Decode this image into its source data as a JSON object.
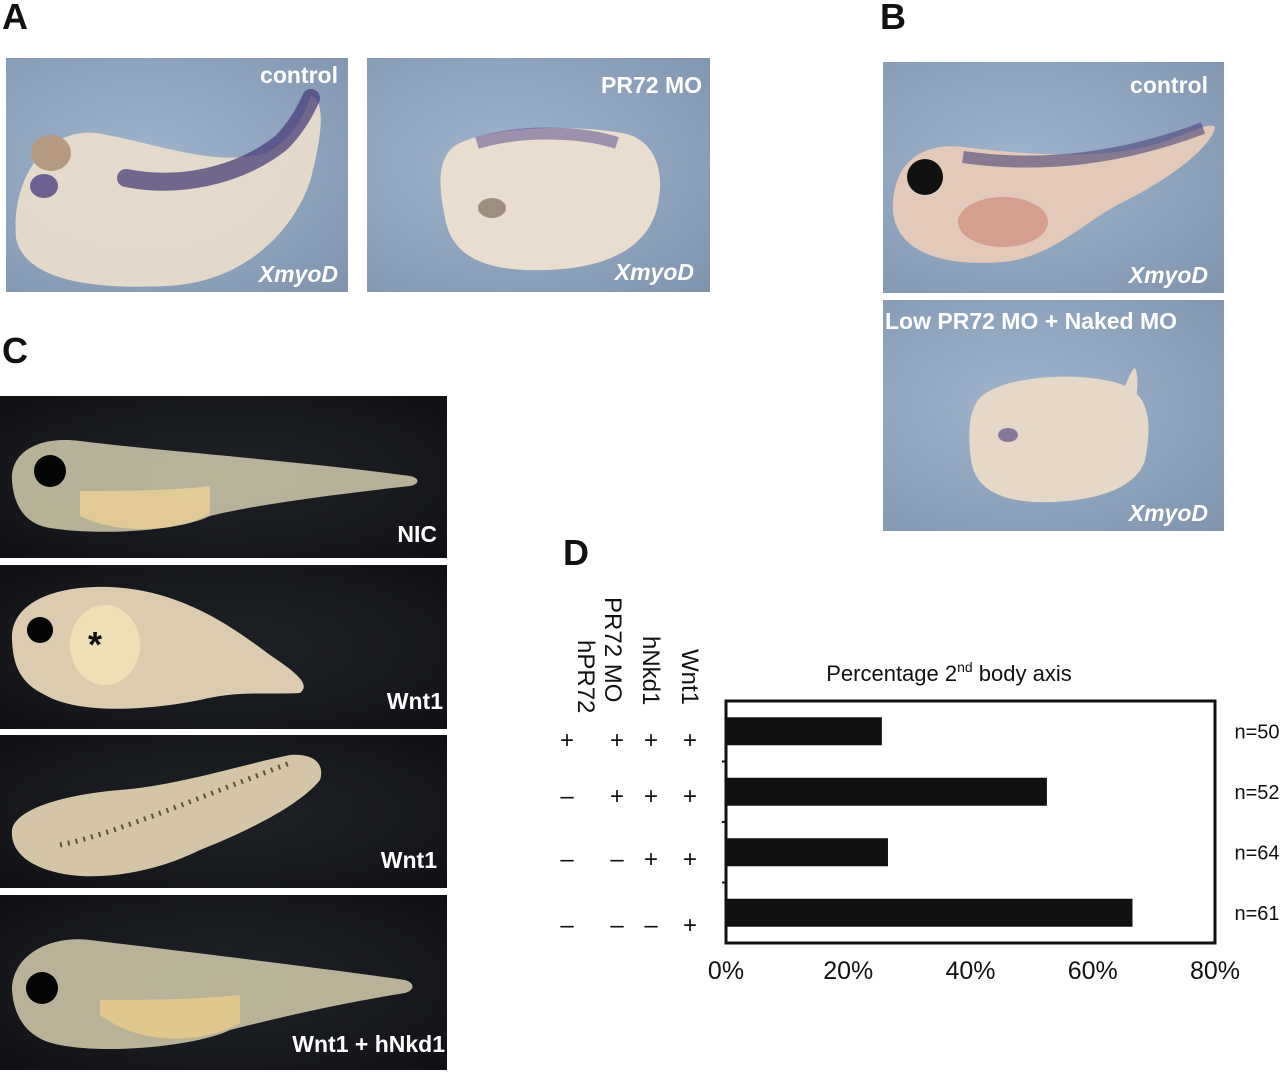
{
  "panels": {
    "a": {
      "letter": "A",
      "left": {
        "condition": "control",
        "marker": "XmyoD"
      },
      "right": {
        "condition": "PR72 MO",
        "marker": "XmyoD"
      }
    },
    "b": {
      "letter": "B",
      "top": {
        "condition": "control",
        "marker": "XmyoD"
      },
      "bottom": {
        "condition": "Low PR72 MO + Naked MO",
        "marker": "XmyoD"
      }
    },
    "c": {
      "letter": "C",
      "rows": [
        {
          "label": "NIC"
        },
        {
          "label": "Wnt1",
          "annotation": "*"
        },
        {
          "label": "Wnt1"
        },
        {
          "label": "Wnt1 + hNkd1"
        }
      ]
    },
    "d": {
      "letter": "D",
      "column_headers": [
        "hPR72",
        "PR72 MO",
        "hNkd1",
        "Wnt1"
      ],
      "treatment_matrix": [
        [
          "+",
          "+",
          "+",
          "+"
        ],
        [
          "–",
          "+",
          "+",
          "+"
        ],
        [
          "–",
          "–",
          "+",
          "+"
        ],
        [
          "–",
          "–",
          "–",
          "+"
        ]
      ]
    }
  },
  "chart_data": {
    "type": "bar",
    "orientation": "horizontal",
    "title_main": "Percentage 2",
    "title_sup": "nd",
    "title_end": " body axis",
    "categories": [
      "n=50",
      "n=52",
      "n=64",
      "n=61"
    ],
    "values": [
      25.5,
      52.5,
      26.5,
      66.5
    ],
    "xlim": [
      0,
      80
    ],
    "xticks": [
      "0%",
      "20%",
      "40%",
      "60%",
      "80%"
    ],
    "bar_color": "#111111"
  }
}
